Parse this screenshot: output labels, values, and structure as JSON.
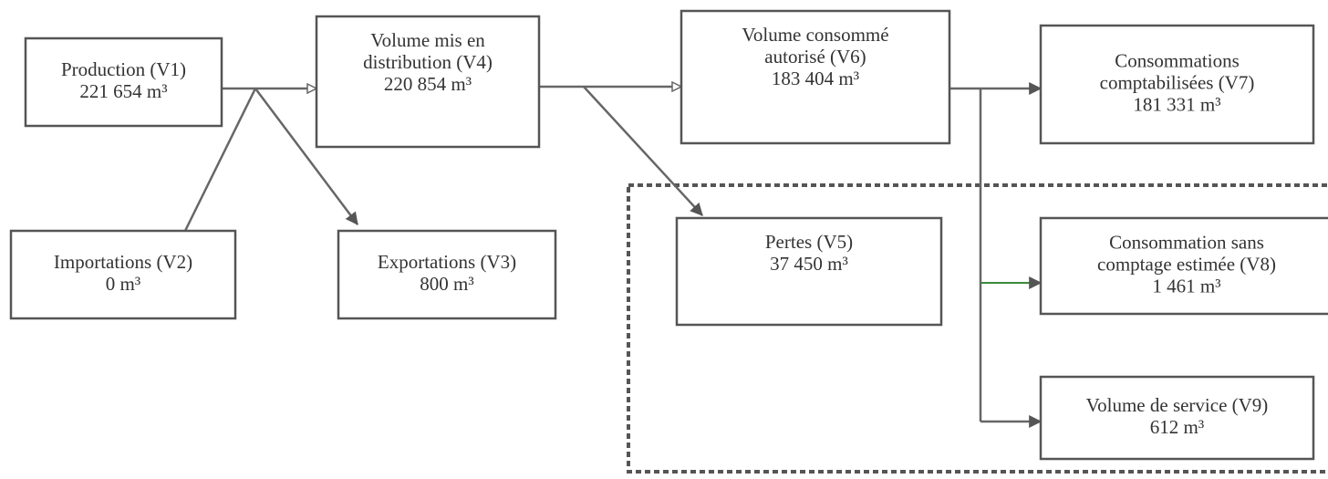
{
  "nodes": [
    {
      "label": [
        "Production (V1)"
      ],
      "value": "221 654 m³"
    },
    {
      "label": [
        "Importations (V2)"
      ],
      "value": "0 m³"
    },
    {
      "label": [
        "Volume mis en",
        "distribution (V4)"
      ],
      "value": "220 854 m³"
    },
    {
      "label": [
        "Exportations (V3)"
      ],
      "value": "800 m³"
    },
    {
      "label": [
        "Volume consommé",
        "autorisé (V6)"
      ],
      "value": "183 404 m³"
    },
    {
      "label": [
        "Pertes (V5)"
      ],
      "value": "37 450 m³"
    },
    {
      "label": [
        "Consommations",
        "comptabilisées (V7)"
      ],
      "value": "181 331 m³"
    },
    {
      "label": [
        "Consommation sans",
        "comptage estimée (V8)"
      ],
      "value": "1 461 m³"
    },
    {
      "label": [
        "Volume de service (V9)"
      ],
      "value": "612 m³"
    }
  ]
}
